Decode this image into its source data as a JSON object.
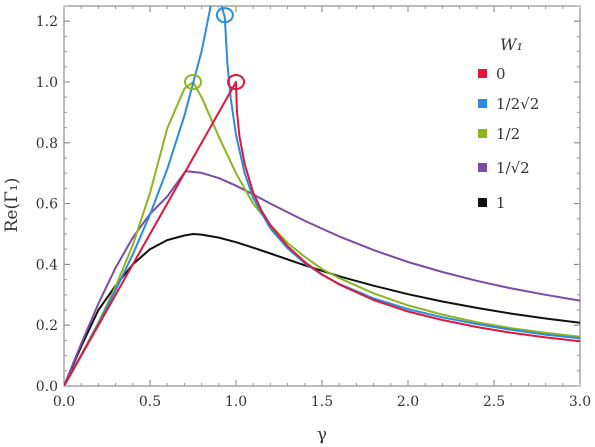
{
  "chart_data": {
    "type": "line",
    "xlabel": "γ",
    "ylabel": "Re(Γ₁)",
    "xlim": [
      0,
      3
    ],
    "ylim": [
      0,
      1.25
    ],
    "x_ticks": [
      "0.0",
      "0.5",
      "1.0",
      "1.5",
      "2.0",
      "2.5",
      "3.0"
    ],
    "y_ticks": [
      "0.0",
      "0.2",
      "0.4",
      "0.6",
      "0.8",
      "1.0",
      "1.2"
    ],
    "grid": false,
    "legend": {
      "title": "W₁",
      "placement": "top-right",
      "entries": [
        "0",
        "1/2√2",
        "1/2",
        "1/√2",
        "1"
      ]
    },
    "series": [
      {
        "name": "0",
        "color": "#E0173B",
        "x": [
          0,
          0.2,
          0.4,
          0.6,
          0.8,
          0.9,
          1.0,
          1.005,
          1.02,
          1.05,
          1.1,
          1.15,
          1.2,
          1.3,
          1.4,
          1.5,
          1.6,
          1.8,
          2.0,
          2.2,
          2.4,
          2.6,
          2.8,
          3.0
        ],
        "y": [
          0,
          0.2,
          0.4,
          0.6,
          0.8,
          0.9,
          1.0,
          0.905,
          0.822,
          0.731,
          0.636,
          0.575,
          0.529,
          0.46,
          0.408,
          0.367,
          0.334,
          0.283,
          0.245,
          0.217,
          0.194,
          0.175,
          0.16,
          0.147
        ],
        "marker": {
          "x": 1.0,
          "y": 1.0
        }
      },
      {
        "name": "1/2√2",
        "color": "#2A8CDB",
        "x": [
          0,
          0.1,
          0.2,
          0.3,
          0.4,
          0.5,
          0.6,
          0.7,
          0.8,
          0.88,
          0.935,
          0.94,
          0.95,
          0.97,
          1.0,
          1.05,
          1.1,
          1.2,
          1.3,
          1.4,
          1.5,
          1.6,
          1.8,
          2.0,
          2.2,
          2.4,
          2.6,
          2.8,
          3.0
        ],
        "y": [
          0,
          0.101,
          0.205,
          0.315,
          0.433,
          0.564,
          0.713,
          0.889,
          1.101,
          1.327,
          1.212,
          1.16,
          1.06,
          0.944,
          0.826,
          0.701,
          0.618,
          0.518,
          0.453,
          0.404,
          0.366,
          0.336,
          0.288,
          0.253,
          0.226,
          0.204,
          0.185,
          0.169,
          0.157
        ],
        "marker": {
          "x": 0.935,
          "y": 1.22
        }
      },
      {
        "name": "1/2",
        "color": "#8DB51F",
        "x": [
          0,
          0.1,
          0.2,
          0.3,
          0.4,
          0.5,
          0.6,
          0.7,
          0.75,
          0.8,
          0.9,
          1.0,
          1.1,
          1.2,
          1.3,
          1.4,
          1.5,
          1.6,
          1.8,
          2.0,
          2.2,
          2.4,
          2.6,
          2.8,
          3.0
        ],
        "y": [
          0,
          0.102,
          0.209,
          0.327,
          0.464,
          0.635,
          0.847,
          0.978,
          1.0,
          0.95,
          0.82,
          0.7,
          0.6,
          0.53,
          0.47,
          0.425,
          0.385,
          0.355,
          0.305,
          0.265,
          0.235,
          0.21,
          0.19,
          0.175,
          0.162
        ],
        "marker": {
          "x": 0.75,
          "y": 1.0
        }
      },
      {
        "name": "1/√2",
        "color": "#7B4BA8",
        "x": [
          0,
          0.1,
          0.2,
          0.3,
          0.4,
          0.5,
          0.6,
          0.7071,
          0.8,
          0.9,
          1.0,
          1.1,
          1.2,
          1.4,
          1.6,
          1.8,
          2.0,
          2.2,
          2.4,
          2.6,
          2.8,
          3.0
        ],
        "y": [
          0,
          0.139,
          0.271,
          0.389,
          0.488,
          0.566,
          0.623,
          0.707,
          0.701,
          0.684,
          0.659,
          0.63,
          0.6,
          0.543,
          0.492,
          0.447,
          0.408,
          0.375,
          0.346,
          0.321,
          0.3,
          0.281
        ]
      },
      {
        "name": "1",
        "color": "#111111",
        "x": [
          0,
          0.1,
          0.2,
          0.3,
          0.4,
          0.5,
          0.6,
          0.7,
          0.75,
          0.8,
          0.9,
          1.0,
          1.1,
          1.2,
          1.4,
          1.6,
          1.8,
          2.0,
          2.2,
          2.4,
          2.6,
          2.8,
          3.0
        ],
        "y": [
          0,
          0.13,
          0.25,
          0.33,
          0.4,
          0.45,
          0.48,
          0.495,
          0.5,
          0.498,
          0.488,
          0.473,
          0.455,
          0.436,
          0.397,
          0.361,
          0.33,
          0.302,
          0.278,
          0.257,
          0.238,
          0.222,
          0.208
        ]
      }
    ]
  }
}
